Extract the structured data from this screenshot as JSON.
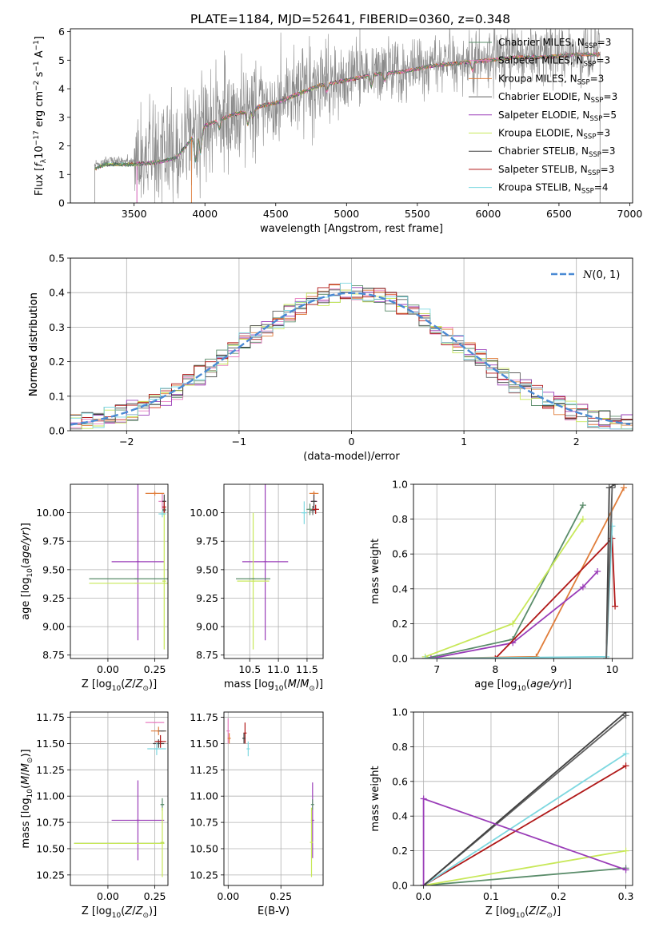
{
  "title": "PLATE=1184, MJD=52641, FIBERID=0360, z=0.348",
  "colors": {
    "chabrier_miles": "#5a8c6a",
    "salpeter_miles": "#e87fc0",
    "kroupa_miles": "#e07d3a",
    "chabrier_elodie": "#606060",
    "salpeter_elodie": "#9a3db8",
    "kroupa_elodie": "#c8e85a",
    "chabrier_stelib": "#404040",
    "salpeter_stelib": "#b01818",
    "kroupa_stelib": "#7ed8e0",
    "data": "#8a8a8a",
    "gaussian": "#4a8ad4"
  },
  "chart_data": [
    {
      "id": "spectrum",
      "type": "line",
      "xlabel": "wavelength [Angstrom, rest frame]",
      "ylabel": "Flux [f_λ 10^-17 erg cm^-2 s^-1 A^-1]",
      "xlim": [
        3050,
        7020
      ],
      "ylim": [
        0,
        6.1
      ],
      "xticks": [
        3500,
        4000,
        4500,
        5000,
        5500,
        6000,
        6500,
        7000
      ],
      "yticks": [
        0,
        1,
        2,
        3,
        4,
        5,
        6
      ],
      "legend_position": "right",
      "legend": [
        {
          "label": "Chabrier MILES, N",
          "sub": "SSP",
          "suffix": "=3",
          "color_key": "chabrier_miles"
        },
        {
          "label": "Salpeter MILES, N",
          "sub": "SSP",
          "suffix": "=3",
          "color_key": "salpeter_miles"
        },
        {
          "label": "Kroupa MILES, N",
          "sub": "SSP",
          "suffix": "=3",
          "color_key": "kroupa_miles"
        },
        {
          "label": "Chabrier ELODIE, N",
          "sub": "SSP",
          "suffix": "=3",
          "color_key": "chabrier_elodie"
        },
        {
          "label": "Salpeter ELODIE, N",
          "sub": "SSP",
          "suffix": "=5",
          "color_key": "salpeter_elodie"
        },
        {
          "label": "Kroupa ELODIE, N",
          "sub": "SSP",
          "suffix": "=3",
          "color_key": "kroupa_elodie"
        },
        {
          "label": "Chabrier STELIB, N",
          "sub": "SSP",
          "suffix": "=3",
          "color_key": "chabrier_stelib"
        },
        {
          "label": "Salpeter STELIB, N",
          "sub": "SSP",
          "suffix": "=3",
          "color_key": "salpeter_stelib"
        },
        {
          "label": "Kroupa STELIB, N",
          "sub": "SSP",
          "suffix": "=4",
          "color_key": "kroupa_stelib"
        }
      ],
      "continuum": {
        "x": [
          3220,
          3300,
          3400,
          3500,
          3600,
          3700,
          3800,
          3900,
          4000,
          4100,
          4200,
          4300,
          4400,
          4500,
          4600,
          4700,
          4800,
          4900,
          5000,
          5200,
          5400,
          5600,
          5800,
          6000,
          6200,
          6400,
          6600,
          6780
        ],
        "y": [
          1.3,
          1.45,
          1.45,
          1.45,
          1.5,
          1.55,
          1.7,
          2.3,
          2.8,
          3.0,
          3.2,
          3.3,
          3.5,
          3.6,
          3.8,
          4.0,
          4.2,
          4.3,
          4.4,
          4.6,
          4.7,
          4.9,
          5.0,
          5.1,
          5.2,
          5.2,
          5.3,
          5.3
        ]
      },
      "model_xmin": [
        3225,
        3520,
        3905,
        3225,
        3520,
        3225,
        3225,
        3225,
        3225
      ],
      "model_xmax": [
        6790,
        6790,
        6790,
        6790,
        6790,
        6790,
        6790,
        6790,
        6790
      ]
    },
    {
      "id": "residual_hist",
      "type": "line",
      "xlabel": "(data-model)/error",
      "ylabel": "Normed distribution",
      "xlim": [
        -2.5,
        2.5
      ],
      "ylim": [
        0,
        0.5
      ],
      "xticks": [
        -2,
        -1,
        0,
        1,
        2
      ],
      "yticks": [
        0.0,
        0.1,
        0.2,
        0.3,
        0.4,
        0.5
      ],
      "bin_width": 0.1,
      "legend_position": "top-right",
      "gaussian_label": "N(0, 1)"
    },
    {
      "id": "age_vs_Z",
      "type": "scatter",
      "xlabel": "Z [log10(Z/Z⊙)]",
      "ylabel": "age  [log10(age/yr)]",
      "xlim": [
        -0.2,
        0.32
      ],
      "ylim": [
        8.72,
        10.25
      ],
      "xticks": [
        0.0,
        0.25
      ],
      "yticks": [
        8.75,
        9.0,
        9.25,
        9.5,
        9.75,
        10.0
      ],
      "points": [
        {
          "s": 0,
          "x": 0.3,
          "y": 10.03,
          "xe": 0.01,
          "ye": 0.05
        },
        {
          "s": 1,
          "x": 0.29,
          "y": 10.1,
          "xe": 0.02,
          "ye": 0.07
        },
        {
          "s": 2,
          "x": 0.25,
          "y": 10.17,
          "xe": 0.05,
          "ye": 0.02
        },
        {
          "s": 3,
          "x": 0.3,
          "y": 10.02,
          "xe": 0.01,
          "ye": 0.04
        },
        {
          "s": 4,
          "x": 0.16,
          "y": 9.57,
          "xe": 0.14,
          "ye": 0.69
        },
        {
          "s": 5,
          "x": 0.3,
          "y": 9.4,
          "xe": 0.01,
          "ye": 0.6
        },
        {
          "s": 6,
          "x": 0.3,
          "y": 10.1,
          "xe": 0.01,
          "ye": 0.06
        },
        {
          "s": 7,
          "x": 0.3,
          "y": 10.05,
          "xe": 0.01,
          "ye": 0.05
        },
        {
          "s": 8,
          "x": 0.29,
          "y": 9.99,
          "xe": 0.02,
          "ye": 0.03
        },
        {
          "s": 0,
          "x": 0.15,
          "y": 9.42,
          "xe": 0.25,
          "ye": 0.0
        },
        {
          "s": 5,
          "x": 0.15,
          "y": 9.38,
          "xe": 0.25,
          "ye": 0.0
        }
      ]
    },
    {
      "id": "age_vs_mass",
      "type": "scatter",
      "xlabel": "mass [log10(M/M⊙)]",
      "ylabel": "",
      "xlim": [
        10.05,
        11.78
      ],
      "ylim": [
        8.72,
        10.25
      ],
      "xticks": [
        10.5,
        11.0,
        11.5
      ],
      "yticks": [
        8.75,
        9.0,
        9.25,
        9.5,
        9.75,
        10.0
      ],
      "points": [
        {
          "s": 0,
          "x": 11.55,
          "y": 10.03,
          "xe": 0.06,
          "ye": 0.05
        },
        {
          "s": 1,
          "x": 11.62,
          "y": 10.1,
          "xe": 0.06,
          "ye": 0.08
        },
        {
          "s": 2,
          "x": 11.62,
          "y": 10.17,
          "xe": 0.08,
          "ye": 0.02
        },
        {
          "s": 3,
          "x": 11.6,
          "y": 10.02,
          "xe": 0.05,
          "ye": 0.04
        },
        {
          "s": 4,
          "x": 10.77,
          "y": 9.57,
          "xe": 0.4,
          "ye": 0.69
        },
        {
          "s": 5,
          "x": 10.56,
          "y": 9.4,
          "xe": 0.28,
          "ye": 0.6
        },
        {
          "s": 6,
          "x": 11.62,
          "y": 10.1,
          "xe": 0.05,
          "ye": 0.06
        },
        {
          "s": 7,
          "x": 11.65,
          "y": 10.03,
          "xe": 0.06,
          "ye": 0.04
        },
        {
          "s": 8,
          "x": 11.45,
          "y": 10.0,
          "xe": 0.05,
          "ye": 0.1
        },
        {
          "s": 0,
          "x": 10.56,
          "y": 9.42,
          "xe": 0.3,
          "ye": 0.0
        }
      ]
    },
    {
      "id": "weight_vs_age",
      "type": "line",
      "xlabel": "age  [log10(age/yr)]",
      "ylabel": "mass weight",
      "xlim": [
        6.6,
        10.35
      ],
      "ylim": [
        0,
        1.0
      ],
      "xticks": [
        7,
        8,
        9,
        10
      ],
      "yticks": [
        0.0,
        0.2,
        0.4,
        0.6,
        0.8,
        1.0
      ],
      "series": [
        {
          "s": 0,
          "x": [
            6.8,
            8.3,
            9.5
          ],
          "y": [
            0.0,
            0.11,
            0.88
          ]
        },
        {
          "s": 2,
          "x": [
            6.8,
            8.7,
            10.2
          ],
          "y": [
            0.0,
            0.01,
            0.98
          ]
        },
        {
          "s": 5,
          "x": [
            6.8,
            8.3,
            9.5
          ],
          "y": [
            0.01,
            0.2,
            0.8
          ]
        },
        {
          "s": 4,
          "x": [
            6.9,
            8.3,
            9.5,
            9.75
          ],
          "y": [
            0.0,
            0.09,
            0.41,
            0.5
          ]
        },
        {
          "s": 7,
          "x": [
            8.0,
            10.0,
            10.05
          ],
          "y": [
            0.0,
            0.69,
            0.3
          ]
        },
        {
          "s": 6,
          "x": [
            9.9,
            9.95,
            10.05
          ],
          "y": [
            0.0,
            0.98,
            1.0
          ]
        },
        {
          "s": 8,
          "x": [
            6.8,
            9.9,
            10.0
          ],
          "y": [
            0.0,
            0.01,
            0.76
          ]
        },
        {
          "s": 3,
          "x": [
            9.9,
            10.0
          ],
          "y": [
            0.0,
            0.98
          ]
        }
      ]
    },
    {
      "id": "mass_vs_Z",
      "type": "scatter",
      "xlabel": "Z [log10(Z/Z⊙)]",
      "ylabel": "mass [log10(M/M⊙)]",
      "xlim": [
        -0.2,
        0.32
      ],
      "ylim": [
        10.15,
        11.8
      ],
      "xticks": [
        0.0,
        0.25
      ],
      "yticks": [
        10.25,
        10.5,
        10.75,
        11.0,
        11.25,
        11.5,
        11.75
      ],
      "points": [
        {
          "s": 0,
          "x": 0.29,
          "y": 10.92,
          "xe": 0.01,
          "ye": 0.06
        },
        {
          "s": 1,
          "x": 0.25,
          "y": 11.7,
          "xe": 0.05,
          "ye": 0.0
        },
        {
          "s": 2,
          "x": 0.27,
          "y": 11.62,
          "xe": 0.04,
          "ye": 0.04
        },
        {
          "s": 3,
          "x": 0.29,
          "y": 11.62,
          "xe": 0.02,
          "ye": 0.0
        },
        {
          "s": 4,
          "x": 0.16,
          "y": 10.77,
          "xe": 0.14,
          "ye": 0.38
        },
        {
          "s": 5,
          "x": 0.29,
          "y": 10.56,
          "xe": 0.01,
          "ye": 0.33
        },
        {
          "s": 6,
          "x": 0.27,
          "y": 11.5,
          "xe": 0.03,
          "ye": 0.04
        },
        {
          "s": 7,
          "x": 0.28,
          "y": 11.52,
          "xe": 0.03,
          "ye": 0.06
        },
        {
          "s": 8,
          "x": 0.26,
          "y": 11.45,
          "xe": 0.05,
          "ye": 0.06
        },
        {
          "s": 0,
          "x": 0.06,
          "y": 10.55,
          "xe": 0.24,
          "ye": 0.0
        },
        {
          "s": 5,
          "x": 0.06,
          "y": 10.55,
          "xe": 0.24,
          "ye": 0.0
        }
      ]
    },
    {
      "id": "mass_vs_ebv",
      "type": "scatter",
      "xlabel": "E(B-V)",
      "ylabel": "",
      "xlim": [
        -0.02,
        0.45
      ],
      "ylim": [
        10.15,
        11.8
      ],
      "xticks": [
        0.0,
        0.25
      ],
      "yticks": [
        10.25,
        10.5,
        10.75,
        11.0,
        11.25,
        11.5,
        11.75
      ],
      "points": [
        {
          "s": 1,
          "x": 0.0,
          "y": 11.62,
          "xe": 0.0,
          "ye": 0.12
        },
        {
          "s": 2,
          "x": 0.005,
          "y": 11.55,
          "xe": 0.0,
          "ye": 0.05
        },
        {
          "s": 7,
          "x": 0.08,
          "y": 11.6,
          "xe": 0.0,
          "ye": 0.1
        },
        {
          "s": 6,
          "x": 0.075,
          "y": 11.55,
          "xe": 0.0,
          "ye": 0.05
        },
        {
          "s": 8,
          "x": 0.095,
          "y": 11.45,
          "xe": 0.0,
          "ye": 0.07
        },
        {
          "s": 4,
          "x": 0.4,
          "y": 10.77,
          "xe": 0.0,
          "ye": 0.36
        },
        {
          "s": 5,
          "x": 0.395,
          "y": 10.56,
          "xe": 0.0,
          "ye": 0.33
        },
        {
          "s": 0,
          "x": 0.4,
          "y": 10.92,
          "xe": 0.0,
          "ye": 0.05
        }
      ]
    },
    {
      "id": "weight_vs_Z",
      "type": "line",
      "xlabel": "Z [log10(Z/Z⊙)]",
      "ylabel": "mass weight",
      "xlim": [
        -0.015,
        0.31
      ],
      "ylim": [
        0,
        1.0
      ],
      "xticks": [
        0.0,
        0.1,
        0.2,
        0.3
      ],
      "yticks": [
        0.0,
        0.2,
        0.4,
        0.6,
        0.8,
        1.0
      ],
      "series": [
        {
          "s": 0,
          "x": [
            0.0,
            0.3
          ],
          "y": [
            0.0,
            0.1
          ]
        },
        {
          "s": 5,
          "x": [
            0.0,
            0.3
          ],
          "y": [
            0.0,
            0.2
          ]
        },
        {
          "s": 7,
          "x": [
            0.0,
            0.3
          ],
          "y": [
            0.0,
            0.69
          ]
        },
        {
          "s": 8,
          "x": [
            0.0,
            0.3
          ],
          "y": [
            0.0,
            0.76
          ]
        },
        {
          "s": 3,
          "x": [
            0.0,
            0.3
          ],
          "y": [
            0.0,
            0.98
          ]
        },
        {
          "s": 6,
          "x": [
            0.0,
            0.3
          ],
          "y": [
            0.0,
            1.0
          ]
        },
        {
          "s": 4,
          "x": [
            0.0,
            0.0,
            0.3
          ],
          "y": [
            0.0,
            0.5,
            0.09
          ]
        }
      ]
    }
  ]
}
